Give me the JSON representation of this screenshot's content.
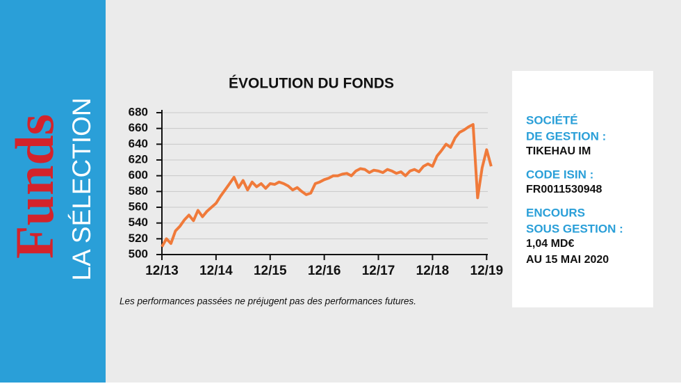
{
  "sidebar": {
    "brand": "Funds",
    "subtitle": "LA SÉLECTION"
  },
  "chart_data": {
    "type": "line",
    "title": "ÉVOLUTION DU FONDS",
    "note": "Les performances passées ne préjugent pas des performances futures.",
    "categories": [
      "12/13",
      null,
      null,
      null,
      null,
      null,
      null,
      null,
      null,
      null,
      null,
      null,
      "12/14",
      null,
      null,
      null,
      null,
      null,
      null,
      null,
      null,
      null,
      null,
      null,
      "12/15",
      null,
      null,
      null,
      null,
      null,
      null,
      null,
      null,
      null,
      null,
      null,
      "12/16",
      null,
      null,
      null,
      null,
      null,
      null,
      null,
      null,
      null,
      null,
      null,
      "12/17",
      null,
      null,
      null,
      null,
      null,
      null,
      null,
      null,
      null,
      null,
      null,
      "12/18",
      null,
      null,
      null,
      null,
      null,
      null,
      null,
      null,
      null,
      null,
      null,
      "12/19",
      null
    ],
    "values": [
      510,
      520,
      514,
      530,
      536,
      544,
      550,
      543,
      556,
      548,
      555,
      560,
      565,
      574,
      582,
      590,
      598,
      585,
      594,
      582,
      592,
      586,
      590,
      584,
      590,
      589,
      592,
      590,
      587,
      582,
      585,
      580,
      576,
      578,
      590,
      592,
      595,
      597,
      600,
      600,
      602,
      603,
      600,
      606,
      609,
      608,
      604,
      607,
      606,
      604,
      608,
      606,
      603,
      605,
      600,
      606,
      608,
      605,
      612,
      615,
      612,
      625,
      632,
      640,
      636,
      648,
      655,
      658,
      662,
      665,
      572,
      610,
      633,
      612
    ],
    "color": "#f07a3a",
    "ylim": [
      500,
      680
    ],
    "yticks": [
      500,
      520,
      540,
      560,
      580,
      600,
      620,
      640,
      660,
      680
    ],
    "grid": true
  },
  "info": [
    {
      "label": [
        "SOCIÉTÉ",
        "DE GESTION :"
      ],
      "value": [
        "TIKEHAU IM"
      ]
    },
    {
      "label": [
        "CODE ISIN :"
      ],
      "value": [
        "FR0011530948"
      ]
    },
    {
      "label": [
        "ENCOURS",
        "SOUS GESTION :"
      ],
      "value": [
        "1,04 MD€",
        "AU 15 MAI 2020"
      ]
    }
  ]
}
